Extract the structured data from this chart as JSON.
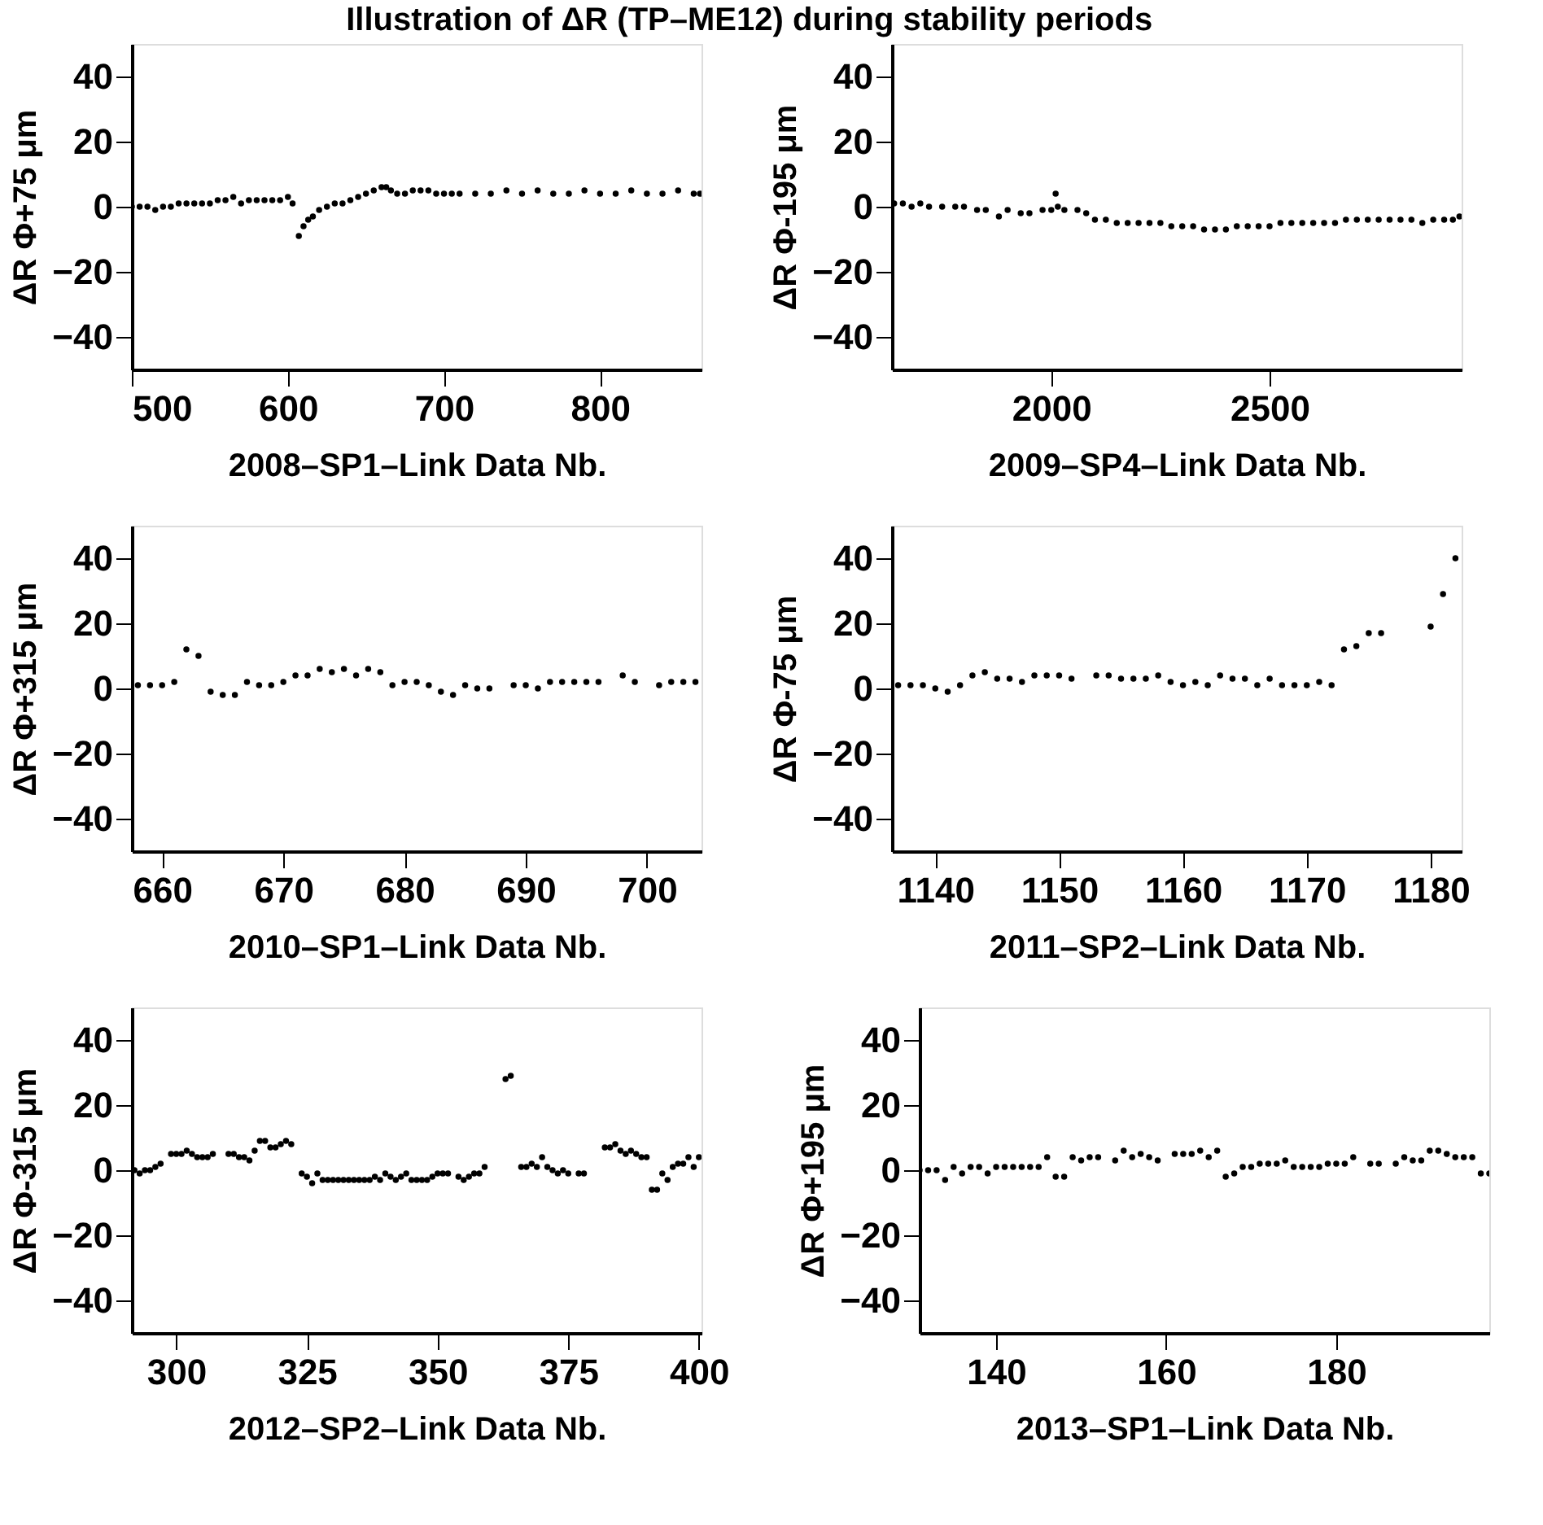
{
  "chart_data": [
    {
      "type": "scatter",
      "title": "Illustration of ΔR (TP–ME12) during stability periods",
      "xlabel": "2008–SP1–Link Data Nb.",
      "ylabel": "ΔR Φ+75 μm",
      "xlim": [
        500,
        865
      ],
      "xticks": [
        500,
        600,
        700,
        800
      ],
      "ylim": [
        -50,
        50
      ],
      "yticks": [
        -40,
        -20,
        0,
        20,
        40
      ],
      "grid": false,
      "marker": "circle",
      "series": [
        {
          "color": "#000000",
          "x": [
            500,
            505,
            510,
            515,
            520,
            525,
            530,
            535,
            540,
            545,
            550,
            555,
            560,
            565,
            570,
            575,
            580,
            585,
            590,
            595,
            600,
            603,
            607,
            610,
            613,
            616,
            620,
            625,
            630,
            635,
            640,
            645,
            650,
            655,
            660,
            663,
            666,
            670,
            675,
            680,
            685,
            690,
            695,
            700,
            705,
            710,
            720,
            730,
            740,
            750,
            760,
            770,
            780,
            790,
            800,
            810,
            820,
            830,
            840,
            850,
            860,
            864
          ],
          "values": [
            0,
            0,
            0,
            -1,
            0,
            0,
            1,
            1,
            1,
            1,
            1,
            2,
            2,
            3,
            1,
            2,
            2,
            2,
            2,
            2,
            3,
            1,
            -9,
            -6,
            -4,
            -3,
            -1,
            0,
            1,
            1,
            2,
            3,
            4,
            5,
            6,
            6,
            5,
            4,
            4,
            5,
            5,
            5,
            4,
            4,
            4,
            4,
            4,
            4,
            5,
            4,
            5,
            4,
            4,
            5,
            4,
            4,
            5,
            4,
            4,
            5,
            4,
            4
          ]
        }
      ]
    },
    {
      "type": "scatter",
      "xlabel": "2009–SP4–Link Data Nb.",
      "ylabel": "ΔR Φ-195 μm",
      "xlim": [
        1635,
        2940
      ],
      "xticks": [
        2000,
        2500
      ],
      "ylim": [
        -50,
        50
      ],
      "yticks": [
        -40,
        -20,
        0,
        20,
        40
      ],
      "grid": false,
      "marker": "circle",
      "series": [
        {
          "color": "#000000",
          "x": [
            1640,
            1660,
            1680,
            1700,
            1720,
            1750,
            1780,
            1800,
            1830,
            1850,
            1880,
            1900,
            1930,
            1950,
            1980,
            2000,
            2010,
            2015,
            2030,
            2060,
            2080,
            2100,
            2125,
            2150,
            2175,
            2200,
            2225,
            2250,
            2275,
            2300,
            2325,
            2350,
            2375,
            2400,
            2425,
            2450,
            2475,
            2500,
            2525,
            2550,
            2575,
            2600,
            2625,
            2650,
            2675,
            2700,
            2725,
            2750,
            2775,
            2800,
            2825,
            2850,
            2875,
            2900,
            2920,
            2935
          ],
          "values": [
            1,
            1,
            0,
            1,
            0,
            0,
            0,
            0,
            -1,
            -1,
            -3,
            -1,
            -2,
            -2,
            -1,
            -1,
            4,
            0,
            -1,
            -1,
            -2,
            -4,
            -4,
            -5,
            -5,
            -5,
            -5,
            -5,
            -6,
            -6,
            -6,
            -7,
            -7,
            -7,
            -6,
            -6,
            -6,
            -6,
            -5,
            -5,
            -5,
            -5,
            -5,
            -5,
            -4,
            -4,
            -4,
            -4,
            -4,
            -4,
            -4,
            -5,
            -4,
            -4,
            -4,
            -3
          ]
        }
      ]
    },
    {
      "type": "scatter",
      "xlabel": "2010–SP1–Link Data Nb.",
      "ylabel": "ΔR Φ+315 μm",
      "xlim": [
        657.5,
        704.5
      ],
      "xticks": [
        660,
        670,
        680,
        690,
        700
      ],
      "ylim": [
        -50,
        50
      ],
      "yticks": [
        -40,
        -20,
        0,
        20,
        40
      ],
      "grid": false,
      "marker": "circle",
      "series": [
        {
          "color": "#000000",
          "x": [
            658,
            659,
            660,
            661,
            662,
            663,
            664,
            665,
            666,
            667,
            668,
            669,
            670,
            671,
            672,
            673,
            674,
            675,
            676,
            677,
            678,
            679,
            680,
            681,
            682,
            683,
            684,
            685,
            686,
            687,
            689,
            690,
            691,
            692,
            693,
            694,
            695,
            696,
            698,
            699,
            701,
            702,
            703,
            704
          ],
          "values": [
            1,
            1,
            1,
            2,
            12,
            10,
            -1,
            -2,
            -2,
            2,
            1,
            1,
            2,
            4,
            4,
            6,
            5,
            6,
            4,
            6,
            5,
            1,
            2,
            2,
            1,
            -1,
            -2,
            1,
            0,
            0,
            1,
            1,
            0,
            2,
            2,
            2,
            2,
            2,
            4,
            2,
            1,
            2,
            2,
            2
          ]
        }
      ]
    },
    {
      "type": "scatter",
      "xlabel": "2011–SP2–Link Data Nb.",
      "ylabel": "ΔR Φ-75 μm",
      "xlim": [
        1136.5,
        1182.5
      ],
      "xticks": [
        1140,
        1150,
        1160,
        1170,
        1180
      ],
      "ylim": [
        -50,
        50
      ],
      "yticks": [
        -40,
        -20,
        0,
        20,
        40
      ],
      "grid": false,
      "marker": "circle",
      "series": [
        {
          "color": "#000000",
          "x": [
            1137,
            1138,
            1139,
            1140,
            1141,
            1142,
            1143,
            1144,
            1145,
            1146,
            1147,
            1148,
            1149,
            1150,
            1151,
            1153,
            1154,
            1155,
            1156,
            1157,
            1158,
            1159,
            1160,
            1161,
            1162,
            1163,
            1164,
            1165,
            1166,
            1167,
            1168,
            1169,
            1170,
            1171,
            1172,
            1173,
            1174,
            1175,
            1176,
            1180,
            1181,
            1182
          ],
          "values": [
            1,
            1,
            1,
            0,
            -1,
            1,
            4,
            5,
            3,
            3,
            2,
            4,
            4,
            4,
            3,
            4,
            4,
            3,
            3,
            3,
            4,
            2,
            1,
            2,
            1,
            4,
            3,
            3,
            1,
            3,
            1,
            1,
            1,
            2,
            1,
            12,
            13,
            17,
            17,
            19,
            29,
            40
          ]
        }
      ]
    },
    {
      "type": "scatter",
      "xlabel": "2012–SP2–Link Data Nb.",
      "ylabel": "ΔR Φ-315 μm",
      "xlim": [
        291.5,
        400.5
      ],
      "xticks": [
        300,
        325,
        350,
        375,
        400
      ],
      "ylim": [
        -50,
        50
      ],
      "yticks": [
        -40,
        -20,
        0,
        20,
        40
      ],
      "grid": false,
      "marker": "circle",
      "series": [
        {
          "color": "#000000",
          "x": [
            292,
            293,
            294,
            295,
            296,
            297,
            299,
            300,
            301,
            302,
            303,
            304,
            305,
            306,
            307,
            310,
            311,
            312,
            313,
            314,
            315,
            316,
            317,
            318,
            319,
            320,
            321,
            322,
            324,
            325,
            326,
            327,
            328,
            329,
            330,
            331,
            332,
            333,
            334,
            335,
            336,
            337,
            338,
            339,
            340,
            341,
            342,
            343,
            344,
            345,
            346,
            347,
            348,
            349,
            350,
            351,
            352,
            354,
            355,
            356,
            357,
            358,
            359,
            363,
            364,
            366,
            367,
            368,
            369,
            370,
            371,
            372,
            373,
            374,
            375,
            377,
            378,
            382,
            383,
            384,
            385,
            386,
            387,
            388,
            389,
            390,
            391,
            392,
            393,
            394,
            395,
            396,
            397,
            398,
            399,
            400
          ],
          "values": [
            0,
            -1,
            0,
            0,
            1,
            2,
            5,
            5,
            5,
            6,
            5,
            4,
            4,
            4,
            5,
            5,
            5,
            4,
            4,
            3,
            6,
            9,
            9,
            7,
            7,
            8,
            9,
            8,
            -1,
            -2,
            -4,
            -1,
            -3,
            -3,
            -3,
            -3,
            -3,
            -3,
            -3,
            -3,
            -3,
            -3,
            -2,
            -3,
            -1,
            -2,
            -3,
            -2,
            -1,
            -3,
            -3,
            -3,
            -3,
            -2,
            -1,
            -1,
            -1,
            -2,
            -3,
            -2,
            -1,
            -1,
            1,
            28,
            29,
            1,
            1,
            2,
            1,
            4,
            1,
            0,
            -1,
            0,
            -1,
            -1,
            -1,
            7,
            7,
            8,
            6,
            5,
            6,
            5,
            4,
            4,
            -6,
            -6,
            -1,
            -3,
            1,
            2,
            2,
            4,
            1,
            4
          ]
        }
      ]
    },
    {
      "type": "scatter",
      "xlabel": "2013–SP1–Link Data Nb.",
      "ylabel": "ΔR Φ+195 μm",
      "xlim": [
        131,
        198
      ],
      "xticks": [
        140,
        160,
        180
      ],
      "ylim": [
        -50,
        50
      ],
      "yticks": [
        -40,
        -20,
        0,
        20,
        40
      ],
      "grid": false,
      "marker": "circle",
      "series": [
        {
          "color": "#000000",
          "x": [
            131,
            132,
            133,
            134,
            135,
            136,
            137,
            138,
            139,
            140,
            141,
            142,
            143,
            144,
            145,
            146,
            147,
            148,
            149,
            150,
            151,
            152,
            154,
            155,
            156,
            157,
            158,
            159,
            161,
            162,
            163,
            164,
            165,
            166,
            167,
            168,
            169,
            170,
            171,
            172,
            173,
            174,
            175,
            176,
            177,
            178,
            179,
            180,
            181,
            182,
            184,
            185,
            187,
            188,
            189,
            190,
            191,
            192,
            193,
            194,
            195,
            196,
            197,
            198
          ],
          "values": [
            0,
            0,
            0,
            -3,
            1,
            -1,
            1,
            1,
            -1,
            1,
            1,
            1,
            1,
            1,
            1,
            4,
            -2,
            -2,
            4,
            3,
            4,
            4,
            3,
            6,
            4,
            5,
            4,
            3,
            5,
            5,
            5,
            6,
            4,
            6,
            -2,
            -1,
            1,
            1,
            2,
            2,
            2,
            3,
            1,
            1,
            1,
            1,
            2,
            2,
            2,
            4,
            2,
            2,
            2,
            4,
            3,
            3,
            6,
            6,
            5,
            4,
            4,
            4,
            -1,
            -1
          ]
        }
      ]
    }
  ]
}
